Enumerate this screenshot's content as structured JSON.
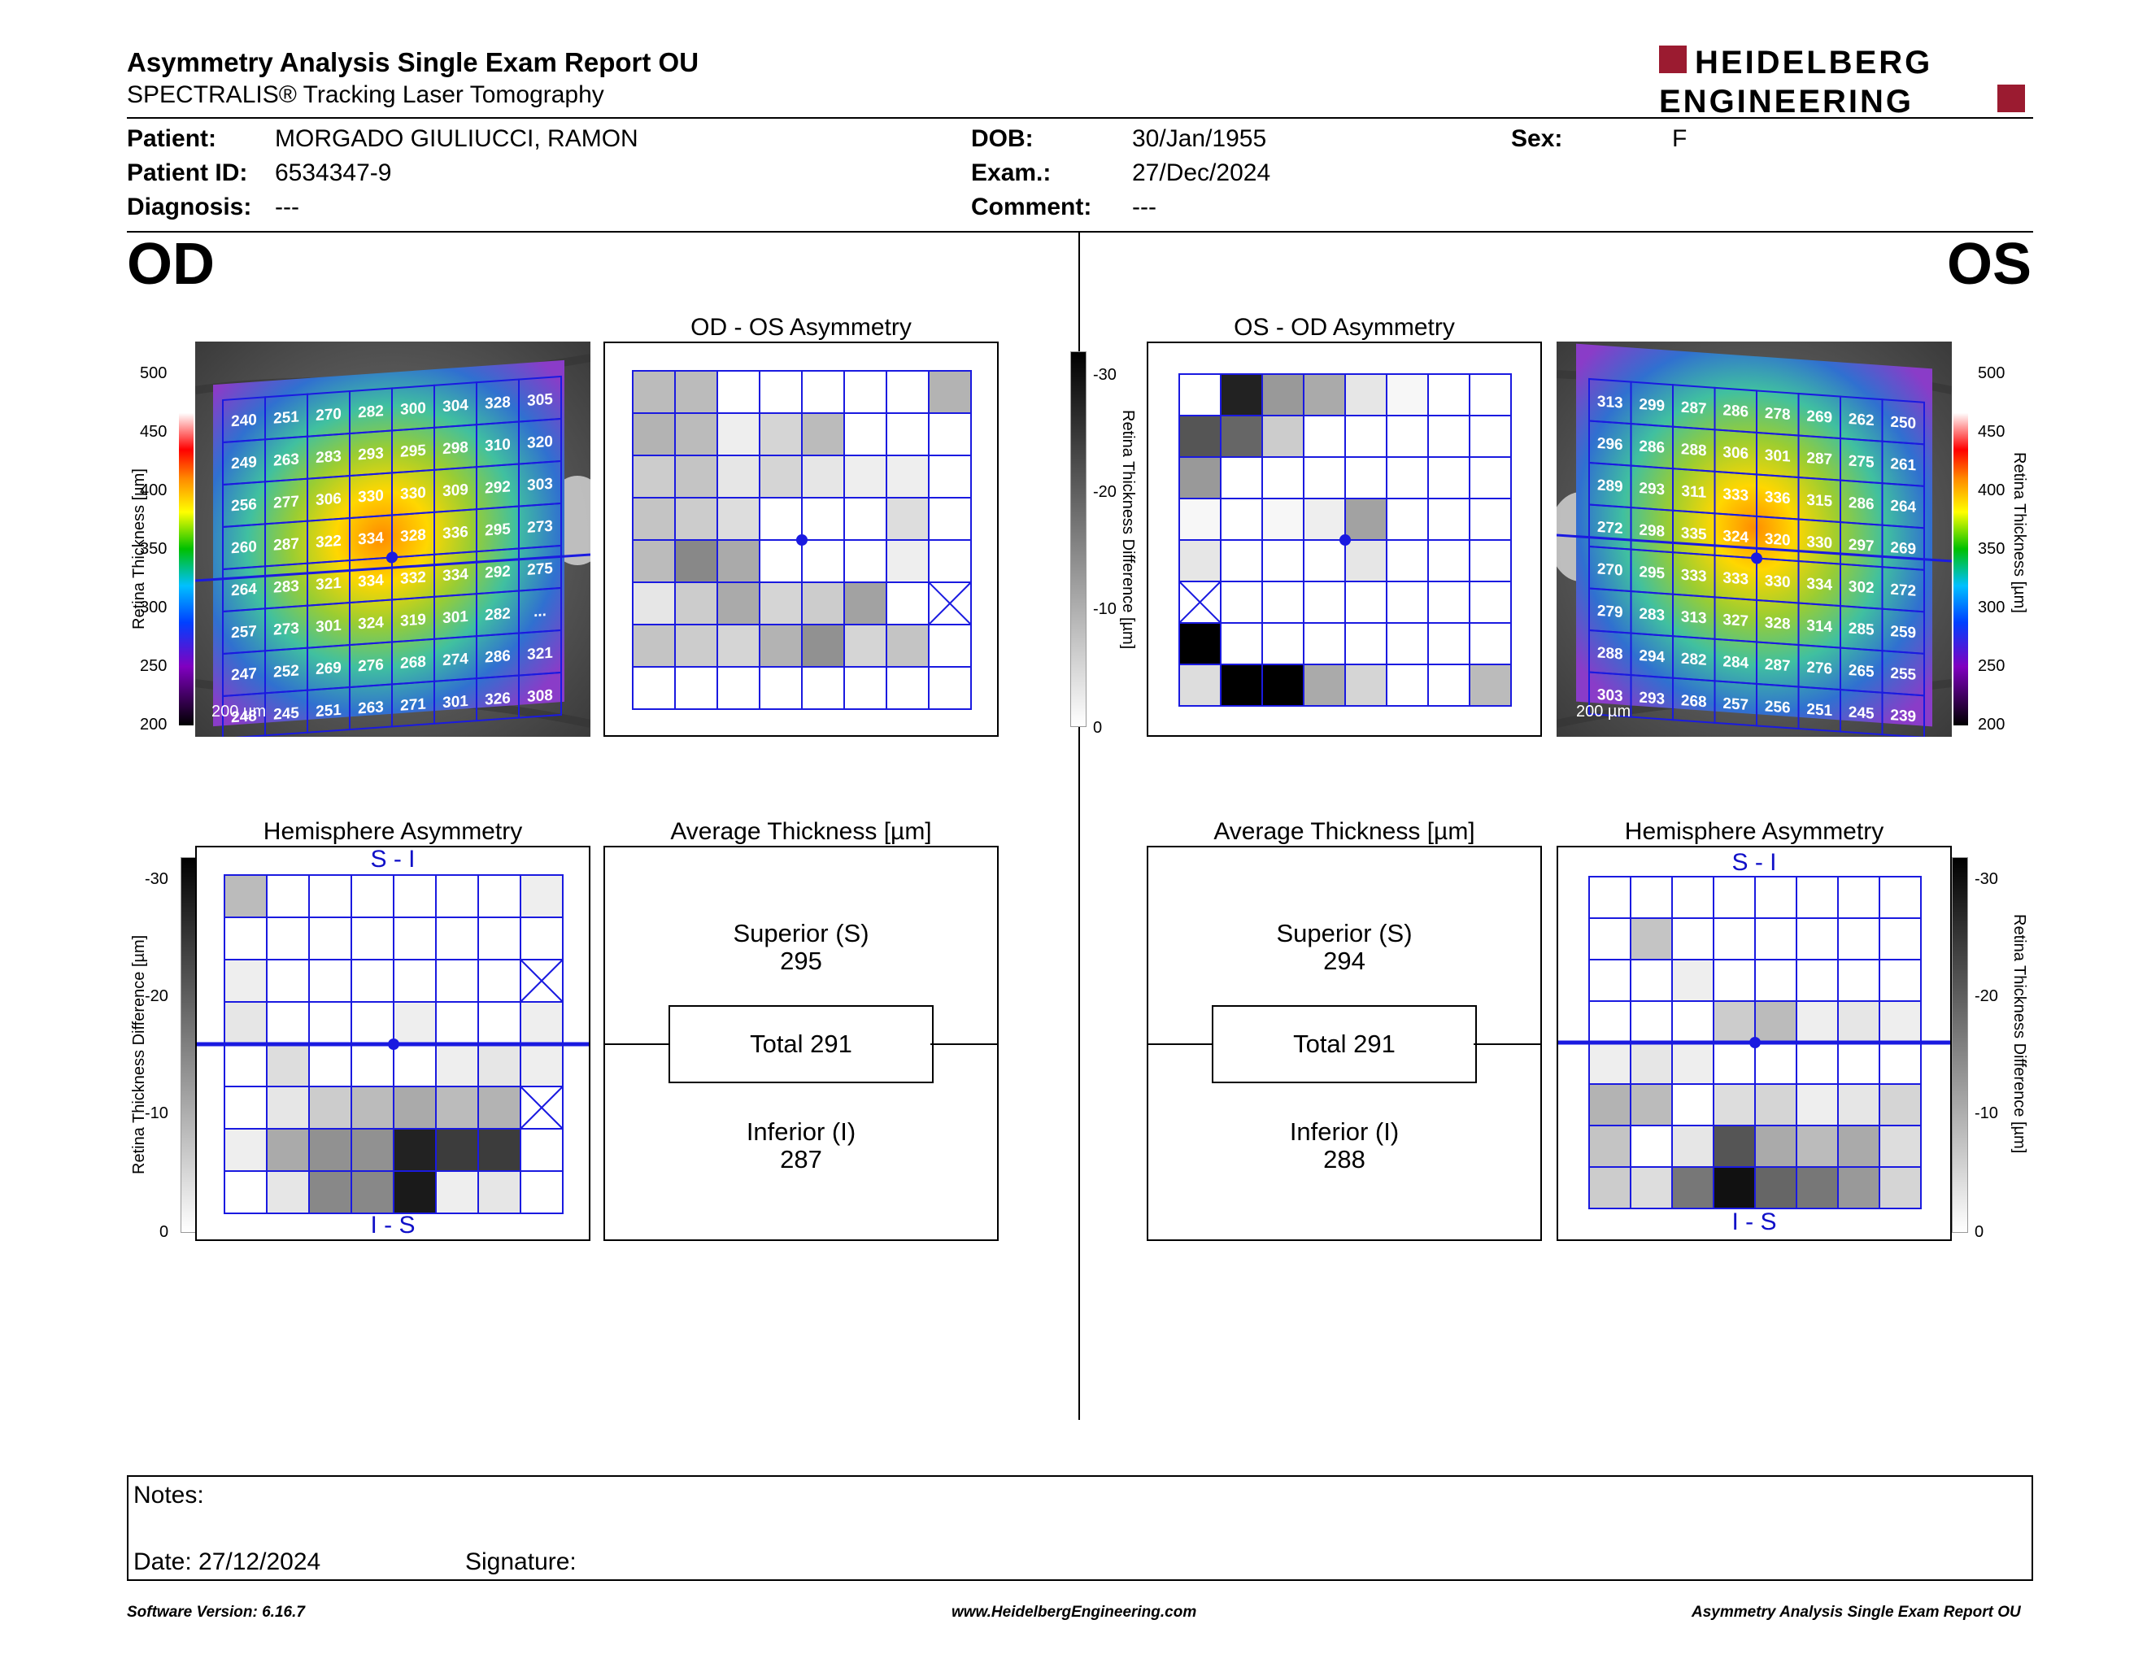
{
  "header": {
    "title": "Asymmetry Analysis Single Exam Report OU",
    "subtitle": "SPECTRALIS® Tracking Laser Tomography",
    "logo_line1": "HEIDELBERG",
    "logo_line2": "ENGINEERING",
    "brand_color": "#9b1b30"
  },
  "patient": {
    "patient_label": "Patient:",
    "patient_value": "MORGADO GIULIUCCI, RAMON",
    "id_label": "Patient ID:",
    "id_value": "6534347-9",
    "diagnosis_label": "Diagnosis:",
    "diagnosis_value": "---",
    "dob_label": "DOB:",
    "dob_value": "30/Jan/1955",
    "exam_label": "Exam.:",
    "exam_value": "27/Dec/2024",
    "comment_label": "Comment:",
    "comment_value": "---",
    "sex_label": "Sex:",
    "sex_value": "F"
  },
  "od": {
    "eye_label": "OD",
    "asym_title": "OD - OS Asymmetry",
    "hemi_title": "Hemisphere Asymmetry",
    "hemi_top": "S - I",
    "hemi_bottom": "I - S",
    "avg_title": "Average Thickness [µm]",
    "superior_label": "Superior (S)",
    "superior_value": "295",
    "total_label": "Total 291",
    "inferior_label": "Inferior (I)",
    "inferior_value": "287",
    "scale_label": "200 µm",
    "thickness": [
      [
        "240",
        "251",
        "270",
        "282",
        "300",
        "304",
        "328",
        "305"
      ],
      [
        "249",
        "263",
        "283",
        "293",
        "295",
        "298",
        "310",
        "320"
      ],
      [
        "256",
        "277",
        "306",
        "330",
        "330",
        "309",
        "292",
        "303"
      ],
      [
        "260",
        "287",
        "322",
        "334",
        "328",
        "336",
        "295",
        "273"
      ],
      [
        "264",
        "283",
        "321",
        "334",
        "332",
        "334",
        "292",
        "275"
      ],
      [
        "257",
        "273",
        "301",
        "324",
        "319",
        "301",
        "282",
        "..."
      ],
      [
        "247",
        "252",
        "269",
        "276",
        "268",
        "274",
        "286",
        "321"
      ],
      [
        "248",
        "245",
        "251",
        "263",
        "271",
        "301",
        "326",
        "308"
      ]
    ],
    "asym_grid": [
      [
        8,
        8,
        0,
        0,
        0,
        0,
        0,
        9
      ],
      [
        9,
        8,
        2,
        5,
        8,
        0,
        0,
        0
      ],
      [
        6,
        7,
        3,
        5,
        3,
        2,
        2,
        0
      ],
      [
        7,
        6,
        4,
        0,
        0,
        0,
        4,
        0
      ],
      [
        8,
        14,
        10,
        0,
        0,
        0,
        2,
        0
      ],
      [
        3,
        6,
        10,
        5,
        6,
        11,
        0,
        -1
      ],
      [
        7,
        6,
        5,
        9,
        13,
        5,
        7,
        0
      ],
      [
        0,
        0,
        0,
        0,
        0,
        0,
        0,
        0
      ]
    ],
    "hemi_grid": [
      [
        8,
        0,
        0,
        0,
        0,
        0,
        0,
        2
      ],
      [
        0,
        0,
        0,
        0,
        0,
        0,
        0,
        0
      ],
      [
        2,
        0,
        0,
        0,
        0,
        0,
        0,
        -1
      ],
      [
        3,
        0,
        0,
        0,
        2,
        0,
        0,
        2
      ],
      [
        0,
        4,
        0,
        0,
        0,
        2,
        3,
        2
      ],
      [
        0,
        3,
        6,
        8,
        10,
        8,
        9,
        -1
      ],
      [
        2,
        10,
        13,
        13,
        26,
        23,
        23,
        0
      ],
      [
        0,
        3,
        14,
        14,
        27,
        2,
        3,
        0
      ]
    ]
  },
  "os": {
    "eye_label": "OS",
    "asym_title": "OS - OD Asymmetry",
    "hemi_title": "Hemisphere Asymmetry",
    "hemi_top": "S - I",
    "hemi_bottom": "I - S",
    "avg_title": "Average Thickness [µm]",
    "superior_label": "Superior (S)",
    "superior_value": "294",
    "total_label": "Total 291",
    "inferior_label": "Inferior (I)",
    "inferior_value": "288",
    "scale_label": "200 µm",
    "thickness": [
      [
        "313",
        "299",
        "287",
        "286",
        "278",
        "269",
        "262",
        "250"
      ],
      [
        "296",
        "286",
        "288",
        "306",
        "301",
        "287",
        "275",
        "261"
      ],
      [
        "289",
        "293",
        "311",
        "333",
        "336",
        "315",
        "286",
        "264"
      ],
      [
        "272",
        "298",
        "335",
        "324",
        "320",
        "330",
        "297",
        "269"
      ],
      [
        "270",
        "295",
        "333",
        "333",
        "330",
        "334",
        "302",
        "272"
      ],
      [
        "279",
        "283",
        "313",
        "327",
        "328",
        "314",
        "285",
        "259"
      ],
      [
        "288",
        "294",
        "282",
        "284",
        "287",
        "276",
        "265",
        "255"
      ],
      [
        "303",
        "293",
        "268",
        "257",
        "256",
        "251",
        "245",
        "239"
      ]
    ],
    "asym_grid": [
      [
        0,
        26,
        12,
        10,
        3,
        1,
        0,
        0
      ],
      [
        20,
        18,
        6,
        0,
        0,
        0,
        0,
        0
      ],
      [
        12,
        0,
        0,
        0,
        0,
        0,
        0,
        0
      ],
      [
        1,
        0,
        1,
        2,
        11,
        0,
        0,
        0
      ],
      [
        3,
        0,
        0,
        0,
        3,
        0,
        0,
        0
      ],
      [
        -1,
        0,
        0,
        0,
        0,
        0,
        0,
        0
      ],
      [
        30,
        0,
        0,
        0,
        0,
        0,
        0,
        0
      ],
      [
        4,
        30,
        30,
        10,
        5,
        0,
        0,
        8
      ]
    ],
    "hemi_grid": [
      [
        0,
        0,
        0,
        0,
        0,
        0,
        0,
        0
      ],
      [
        0,
        7,
        0,
        0,
        0,
        0,
        0,
        0
      ],
      [
        0,
        0,
        2,
        0,
        0,
        0,
        0,
        0
      ],
      [
        0,
        0,
        0,
        6,
        8,
        2,
        3,
        2
      ],
      [
        2,
        3,
        2,
        0,
        0,
        0,
        0,
        0
      ],
      [
        9,
        8,
        0,
        4,
        5,
        2,
        3,
        5
      ],
      [
        7,
        0,
        3,
        20,
        10,
        8,
        10,
        4
      ],
      [
        6,
        4,
        16,
        28,
        18,
        16,
        12,
        5
      ]
    ]
  },
  "axes": {
    "thickness_ticks": [
      "500",
      "450",
      "400",
      "350",
      "300",
      "250",
      "200"
    ],
    "thickness_label": "Retina Thickness [µm]",
    "diff_ticks": [
      "-30",
      "-20",
      "-10",
      "0"
    ],
    "diff_label": "Retina Thickness Difference [µm]"
  },
  "notes": {
    "notes_label": "Notes:",
    "date_label": "Date: 27/12/2024",
    "signature_label": "Signature:"
  },
  "footer": {
    "software": "Software Version: 6.16.7",
    "website": "www.HeidelbergEngineering.com",
    "report": "Asymmetry Analysis Single Exam Report OU"
  }
}
